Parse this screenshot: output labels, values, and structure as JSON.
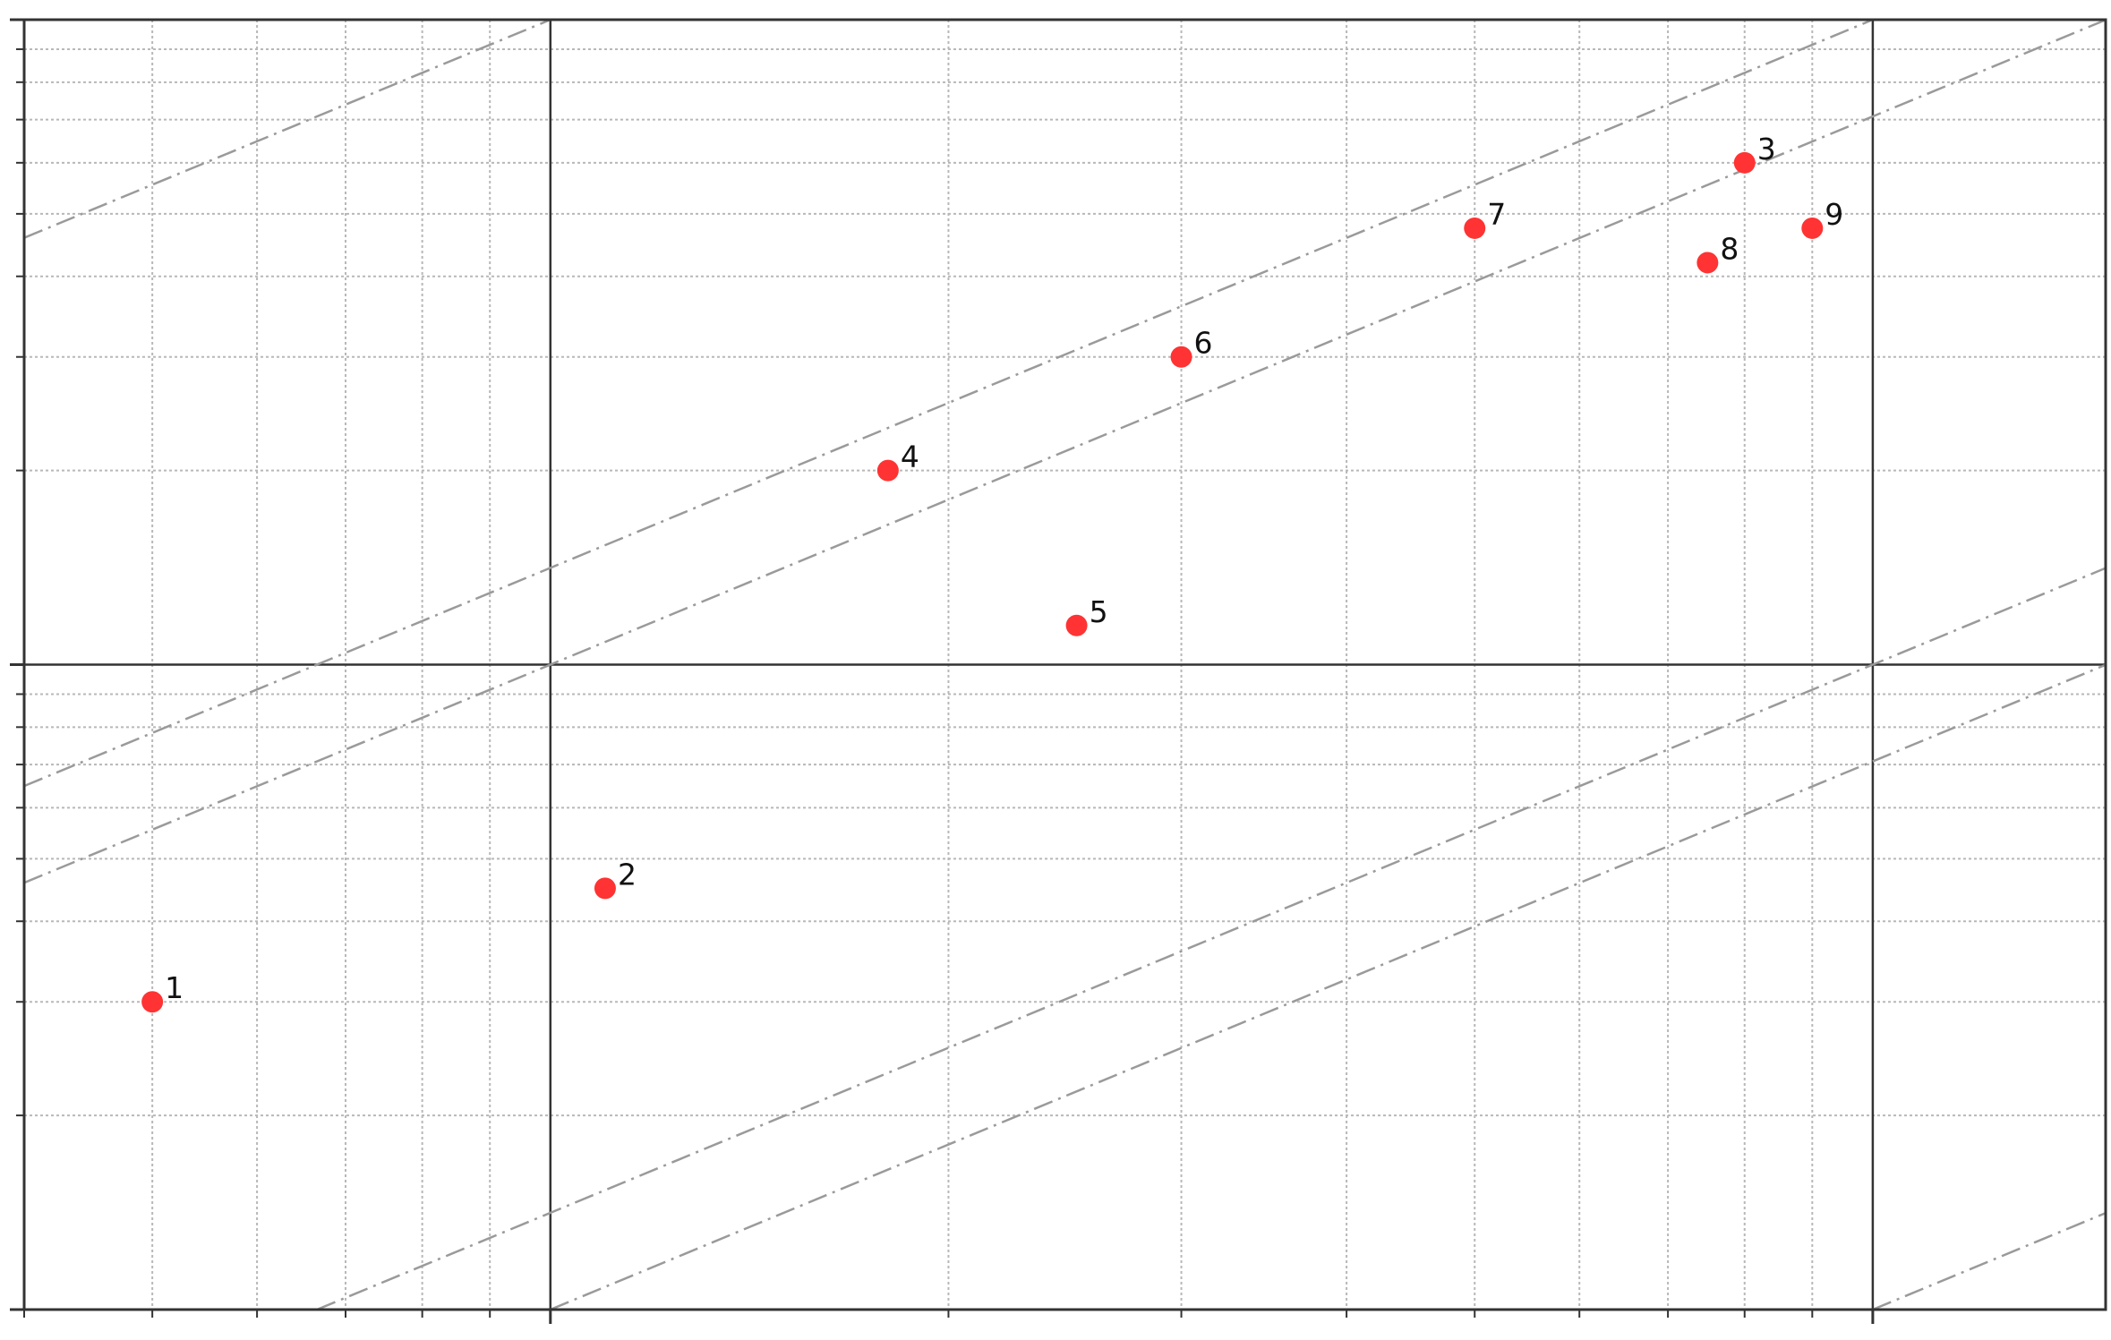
{
  "chart_data": {
    "type": "scatter",
    "title": "",
    "xlabel": "",
    "ylabel": "",
    "x_scale": "log",
    "y_scale": "log",
    "xlim": [
      0.4,
      15
    ],
    "ylim": [
      0.1,
      10
    ],
    "grid": true,
    "reference_lines": {
      "style": "dash-dot",
      "color": "#9a9a9a",
      "slope_on_log_axes": 0.85,
      "through_points": [
        [
          1,
          10
        ],
        [
          1,
          1
        ],
        [
          10,
          10
        ],
        [
          10,
          1
        ],
        [
          10,
          0.1
        ],
        [
          1,
          0.1
        ]
      ]
    },
    "points": [
      {
        "label": "1",
        "x": 0.5,
        "y": 0.3
      },
      {
        "label": "2",
        "x": 1.1,
        "y": 0.45
      },
      {
        "label": "3",
        "x": 8.0,
        "y": 6.0
      },
      {
        "label": "4",
        "x": 1.8,
        "y": 2.0
      },
      {
        "label": "5",
        "x": 2.5,
        "y": 1.15
      },
      {
        "label": "6",
        "x": 3.0,
        "y": 3.0
      },
      {
        "label": "7",
        "x": 5.0,
        "y": 4.75
      },
      {
        "label": "8",
        "x": 7.5,
        "y": 4.2
      },
      {
        "label": "9",
        "x": 9.0,
        "y": 4.75
      }
    ],
    "marker_color": "#ff3333"
  }
}
